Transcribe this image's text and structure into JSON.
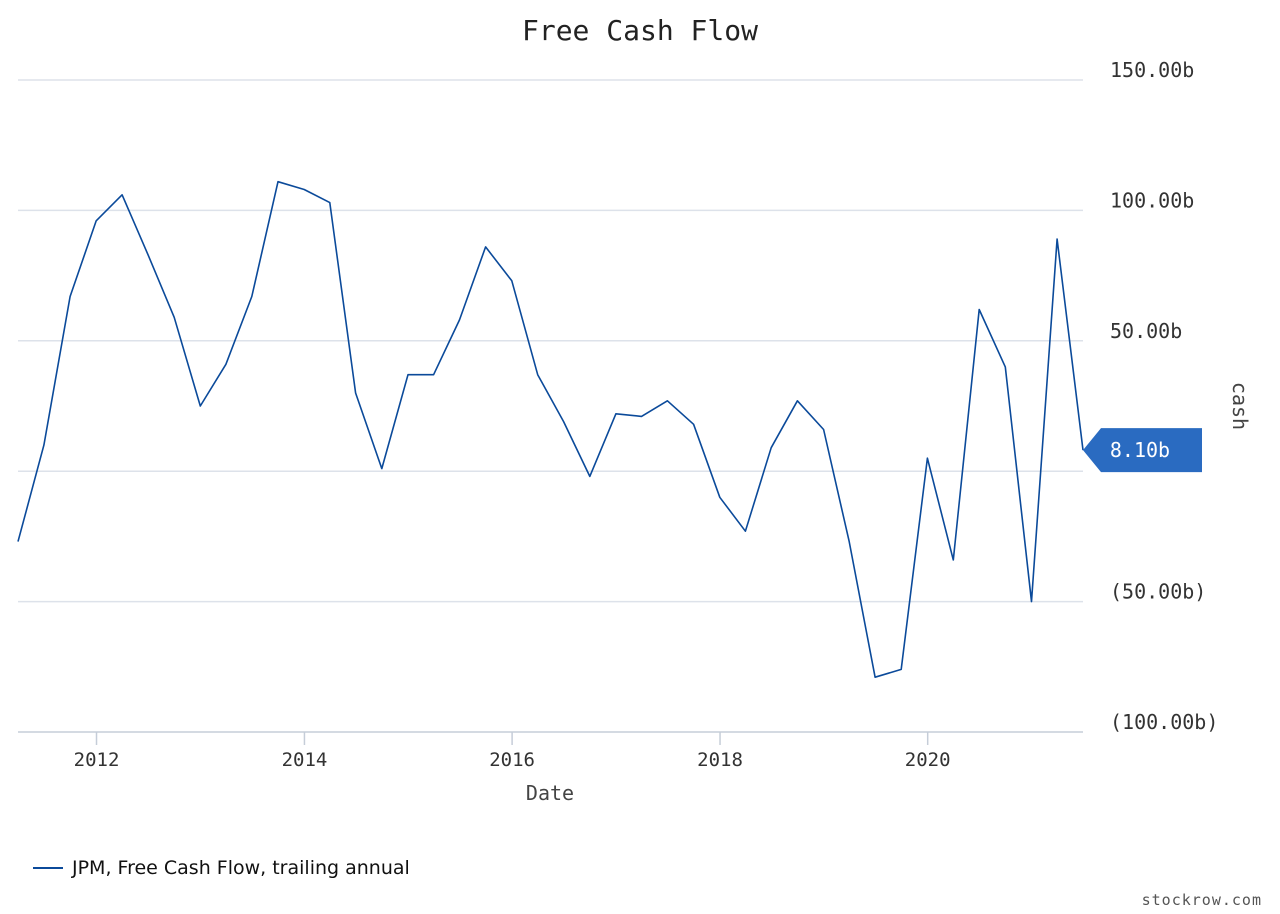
{
  "chart_data": {
    "type": "line",
    "title": "Free Cash Flow",
    "xlabel": "Date",
    "ylabel": "cash",
    "x_ticks": [
      "2012",
      "2014",
      "2016",
      "2018",
      "2020"
    ],
    "y_ticks": [
      {
        "value": 150,
        "label": "150.00b"
      },
      {
        "value": 100,
        "label": "100.00b"
      },
      {
        "value": 50,
        "label": "50.00b"
      },
      {
        "value": 0,
        "label": ""
      },
      {
        "value": -50,
        "label": "(50.00b)"
      },
      {
        "value": -100,
        "label": "(100.00b)"
      }
    ],
    "ylim": [
      -100,
      150
    ],
    "xlim": [
      "2011-03-31",
      "2021-06-30"
    ],
    "grid": true,
    "legend_position": "bottom-left",
    "series": [
      {
        "name": "JPM, Free Cash Flow, trailing annual",
        "color": "#0b4a9a",
        "x": [
          "2011-03-31",
          "2011-06-30",
          "2011-09-30",
          "2011-12-31",
          "2012-03-31",
          "2012-06-30",
          "2012-09-30",
          "2012-12-31",
          "2013-03-31",
          "2013-06-30",
          "2013-09-30",
          "2013-12-31",
          "2014-03-31",
          "2014-06-30",
          "2014-09-30",
          "2014-12-31",
          "2015-03-31",
          "2015-06-30",
          "2015-09-30",
          "2015-12-31",
          "2016-03-31",
          "2016-06-30",
          "2016-09-30",
          "2016-12-31",
          "2017-03-31",
          "2017-06-30",
          "2017-09-30",
          "2017-12-31",
          "2018-03-31",
          "2018-06-30",
          "2018-09-30",
          "2018-12-31",
          "2019-03-31",
          "2019-06-30",
          "2019-09-30",
          "2019-12-31",
          "2020-03-31",
          "2020-06-30",
          "2020-09-30",
          "2020-12-31",
          "2021-03-31",
          "2021-06-30"
        ],
        "values": [
          -27,
          10,
          67,
          96,
          106,
          83,
          59,
          25,
          41,
          67,
          111,
          108,
          103,
          30,
          1,
          37,
          37,
          58,
          86,
          73,
          37,
          19,
          -2,
          22,
          21,
          27,
          18,
          -10,
          -23,
          9,
          27,
          16,
          -27,
          -79,
          -76,
          5,
          -34,
          62,
          40,
          -50,
          89,
          8.1
        ]
      }
    ],
    "last_value_label": "8.10b",
    "accent_color": "#2a6bc1"
  },
  "watermark": "stockrow.com"
}
